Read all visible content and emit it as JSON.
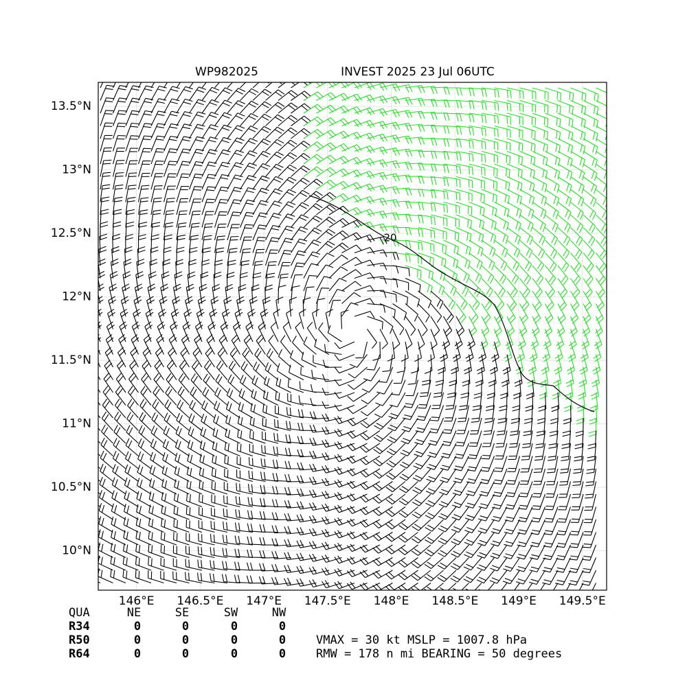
{
  "title_left": "WP982025",
  "title_right": "INVEST 2025 23 Jul 06UTC",
  "map": {
    "xlim": [
      145.7,
      149.69
    ],
    "ylim": [
      9.69,
      13.69
    ],
    "xticks": [
      {
        "value": 146,
        "label": "146°E"
      },
      {
        "value": 146.5,
        "label": "146.5°E"
      },
      {
        "value": 147,
        "label": "147°E"
      },
      {
        "value": 147.5,
        "label": "147.5°E"
      },
      {
        "value": 148,
        "label": "148°E"
      },
      {
        "value": 148.5,
        "label": "148.5°E"
      },
      {
        "value": 149,
        "label": "149°E"
      },
      {
        "value": 149.5,
        "label": "149.5°E"
      }
    ],
    "yticks": [
      {
        "value": 10,
        "label": "10°N"
      },
      {
        "value": 10.5,
        "label": "10.5°N"
      },
      {
        "value": 11,
        "label": "11°N"
      },
      {
        "value": 11.5,
        "label": "11.5°N"
      },
      {
        "value": 12,
        "label": "12°N"
      },
      {
        "value": 12.5,
        "label": "12.5°N"
      },
      {
        "value": 13,
        "label": "13°N"
      },
      {
        "value": 13.5,
        "label": "13.5°N"
      }
    ],
    "contour_label": "20",
    "grid": true
  },
  "table": {
    "header": [
      "QUA",
      "NE",
      "SE",
      "SW",
      "NW"
    ],
    "rows": [
      [
        "R34",
        "0",
        "0",
        "0",
        "0"
      ],
      [
        "R50",
        "0",
        "0",
        "0",
        "0"
      ],
      [
        "R64",
        "0",
        "0",
        "0",
        "0"
      ]
    ]
  },
  "info": [
    "VMAX =  30 kt MSLP = 1007.8 hPa",
    "RMW = 178 n mi BEARING =  50 degrees"
  ]
}
